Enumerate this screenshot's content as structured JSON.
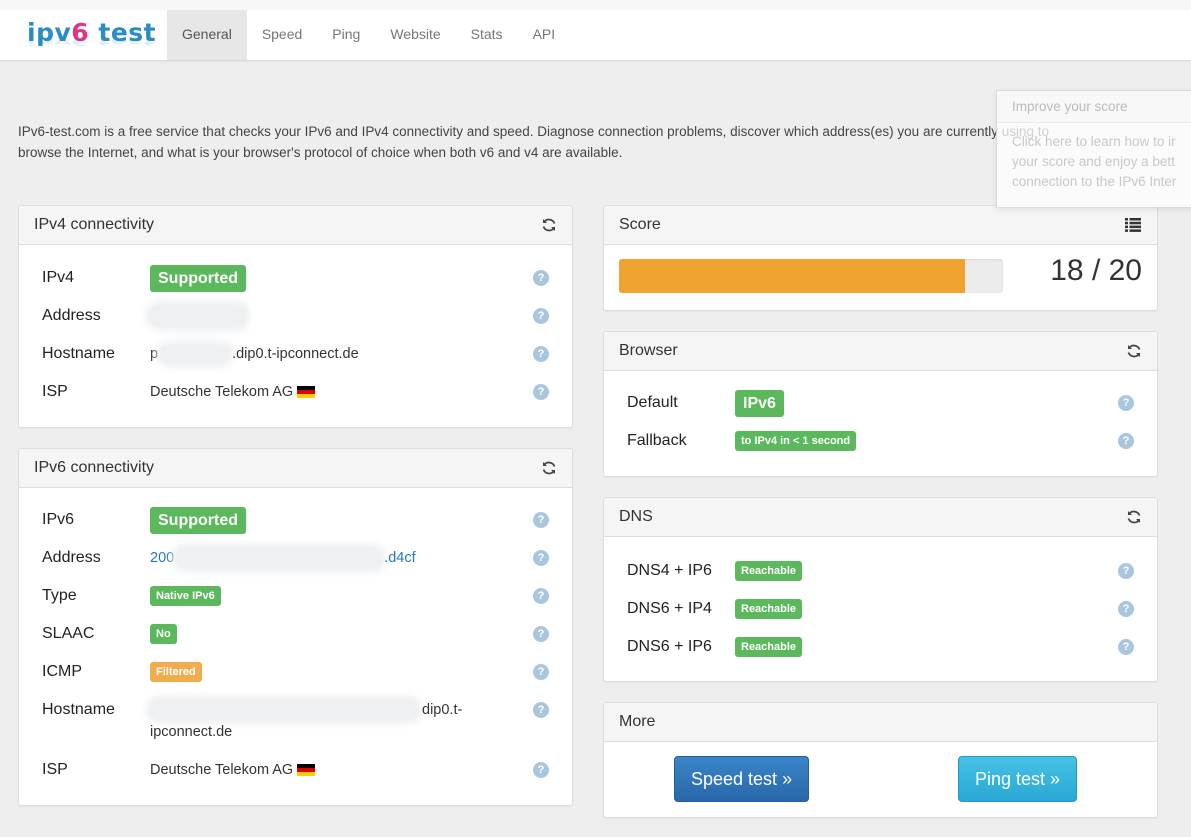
{
  "brand": {
    "part1": "ipv",
    "part2": "6",
    "part3": " test"
  },
  "nav": {
    "items": [
      {
        "label": "General",
        "active": true
      },
      {
        "label": "Speed"
      },
      {
        "label": "Ping"
      },
      {
        "label": "Website"
      },
      {
        "label": "Stats"
      },
      {
        "label": "API"
      }
    ]
  },
  "intro": {
    "line1": "IPv6-test.com is a free service that checks your IPv6 and IPv4 connectivity and speed. Diagnose connection problems, discover which address(es) you are currently using to",
    "line2": "browse the Internet, and what is your browser's protocol of choice when both v6 and v4 are available."
  },
  "popover": {
    "title": "Improve your score",
    "line1": "Click here to learn how to ir",
    "line2": "your score and enjoy a bett",
    "line3": "connection to the IPv6 Inter"
  },
  "ipv4": {
    "title": "IPv4 connectivity",
    "rows": {
      "ipv4": {
        "label": "IPv4",
        "value": "Supported"
      },
      "address": {
        "label": "Address"
      },
      "hostname": {
        "label": "Hostname",
        "prefix": "p",
        "suffix": ".dip0.t-ipconnect.de"
      },
      "isp": {
        "label": "ISP",
        "value": "Deutsche Telekom AG"
      }
    }
  },
  "ipv6": {
    "title": "IPv6 connectivity",
    "rows": {
      "ipv6": {
        "label": "IPv6",
        "value": "Supported"
      },
      "address": {
        "label": "Address",
        "prefix": "200",
        "suffix": ".d4cf"
      },
      "type": {
        "label": "Type",
        "value": "Native IPv6"
      },
      "slaac": {
        "label": "SLAAC",
        "value": "No"
      },
      "icmp": {
        "label": "ICMP",
        "value": "Filtered"
      },
      "hostname": {
        "label": "Hostname",
        "suffix": "dip0.t-",
        "line2": "ipconnect.de"
      },
      "isp": {
        "label": "ISP",
        "value": "Deutsche Telekom AG"
      }
    }
  },
  "score": {
    "title": "Score",
    "text": "18 / 20",
    "value": 18,
    "max": 20
  },
  "browser": {
    "title": "Browser",
    "default": {
      "label": "Default",
      "value": "IPv6"
    },
    "fallback": {
      "label": "Fallback",
      "value": "to IPv4 in < 1 second"
    }
  },
  "dns": {
    "title": "DNS",
    "rows": [
      {
        "label": "DNS4 + IP6",
        "value": "Reachable"
      },
      {
        "label": "DNS6 + IP4",
        "value": "Reachable"
      },
      {
        "label": "DNS6 + IP6",
        "value": "Reachable"
      }
    ]
  },
  "more": {
    "title": "More",
    "speed_btn": "Speed test »",
    "ping_btn": "Ping test »"
  },
  "colors": {
    "success": "#5cb85c",
    "warning": "#f0ad4e",
    "score_bar": "#f0a330",
    "primary": "#2a7ab7",
    "info": "#2aa7d4"
  },
  "icons": {
    "refresh": "refresh-icon",
    "help": "help-icon",
    "list": "list-icon",
    "flag": "germany-flag-icon"
  },
  "help_glyph": "?"
}
